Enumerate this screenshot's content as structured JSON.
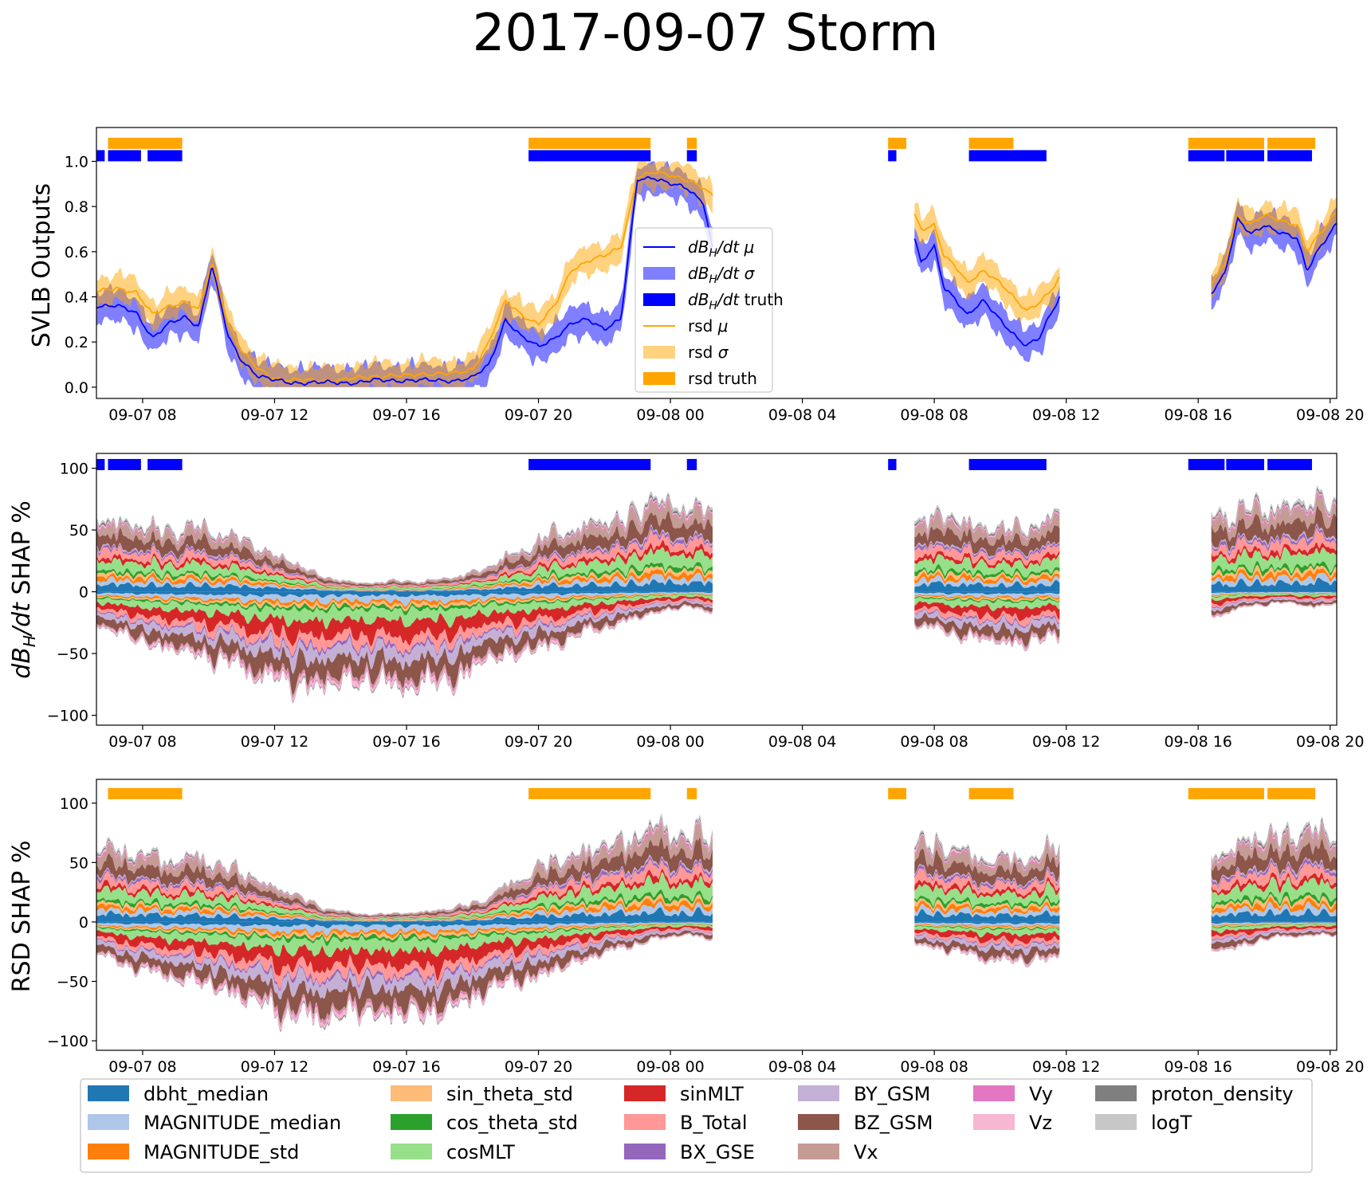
{
  "figure": {
    "title": "2017-09-07 Storm"
  },
  "chart_data": [
    {
      "type": "area",
      "panel": "top",
      "ylabel": "SVLB Outputs",
      "ylim": [
        -0.05,
        1.15
      ],
      "yticks": [
        "0.0",
        "0.2",
        "0.4",
        "0.6",
        "0.8",
        "1.0"
      ],
      "ytick_values": [
        0.0,
        0.2,
        0.4,
        0.6,
        0.8,
        1.0
      ],
      "xlim_hours": [
        6.6,
        44.2
      ],
      "xtick_labels": [
        "09-07 08",
        "09-07 12",
        "09-07 16",
        "09-07 20",
        "09-08 00",
        "09-08 04",
        "09-08 08",
        "09-08 12",
        "09-08 16",
        "09-08 20"
      ],
      "xtick_hours": [
        8,
        12,
        16,
        20,
        24,
        28,
        32,
        36,
        40,
        44
      ],
      "legend": {
        "placement": "center",
        "entries": [
          "dB_H/dt μ",
          "dB_H/dt σ",
          "dB_H/dt truth",
          "rsd μ",
          "rsd σ",
          "rsd truth"
        ]
      },
      "segments_hours": [
        [
          6.6,
          25.3
        ],
        [
          31.4,
          35.8
        ],
        [
          40.4,
          44.2
        ]
      ],
      "series": [
        {
          "name": "dB_H/dt μ",
          "color": "#0000ff",
          "x": [
            6.6,
            7.2,
            7.8,
            8.3,
            8.8,
            9.3,
            9.7,
            10.1,
            10.6,
            11.0,
            11.5,
            12.0,
            12.5,
            13.0,
            13.5,
            14.0,
            14.5,
            15.0,
            15.5,
            16.0,
            16.5,
            17.0,
            17.5,
            18.0,
            18.5,
            19.0,
            19.5,
            20.0,
            20.5,
            21.0,
            21.5,
            22.0,
            22.5,
            23.0,
            23.5,
            24.0,
            24.5,
            25.0,
            25.3,
            31.4,
            31.6,
            32.0,
            32.3,
            32.6,
            33.0,
            33.5,
            34.0,
            34.5,
            34.8,
            35.2,
            35.5,
            35.8,
            40.4,
            40.8,
            41.2,
            41.6,
            42.0,
            42.5,
            43.0,
            43.3,
            43.6,
            44.0,
            44.2
          ],
          "values": [
            0.36,
            0.36,
            0.33,
            0.22,
            0.28,
            0.31,
            0.27,
            0.54,
            0.22,
            0.12,
            0.05,
            0.03,
            0.02,
            0.02,
            0.02,
            0.02,
            0.02,
            0.03,
            0.03,
            0.03,
            0.03,
            0.03,
            0.03,
            0.04,
            0.1,
            0.3,
            0.22,
            0.18,
            0.22,
            0.28,
            0.3,
            0.26,
            0.3,
            0.92,
            0.93,
            0.9,
            0.88,
            0.82,
            0.6,
            0.66,
            0.55,
            0.62,
            0.44,
            0.4,
            0.32,
            0.38,
            0.3,
            0.22,
            0.18,
            0.22,
            0.32,
            0.4,
            0.42,
            0.5,
            0.74,
            0.68,
            0.72,
            0.68,
            0.66,
            0.52,
            0.6,
            0.68,
            0.72
          ]
        },
        {
          "name": "rsd μ",
          "color": "#ffa500",
          "x": [
            6.6,
            7.2,
            7.8,
            8.3,
            8.8,
            9.3,
            9.7,
            10.1,
            10.6,
            11.0,
            11.5,
            12.0,
            12.5,
            13.0,
            13.5,
            14.0,
            14.5,
            15.0,
            15.5,
            16.0,
            16.5,
            17.0,
            17.5,
            18.0,
            18.5,
            19.0,
            19.5,
            20.0,
            20.5,
            21.0,
            21.5,
            22.0,
            22.5,
            23.0,
            23.5,
            24.0,
            24.5,
            25.0,
            25.3,
            31.4,
            31.6,
            32.0,
            32.3,
            32.6,
            33.0,
            33.5,
            34.0,
            34.5,
            34.8,
            35.2,
            35.5,
            35.8,
            40.4,
            40.8,
            41.2,
            41.6,
            42.0,
            42.5,
            43.0,
            43.3,
            43.6,
            44.0,
            44.2
          ],
          "values": [
            0.42,
            0.44,
            0.42,
            0.32,
            0.36,
            0.38,
            0.34,
            0.55,
            0.28,
            0.16,
            0.08,
            0.04,
            0.03,
            0.03,
            0.03,
            0.03,
            0.04,
            0.05,
            0.05,
            0.05,
            0.06,
            0.06,
            0.06,
            0.08,
            0.2,
            0.38,
            0.32,
            0.28,
            0.36,
            0.52,
            0.56,
            0.58,
            0.62,
            0.93,
            0.95,
            0.94,
            0.92,
            0.88,
            0.84,
            0.76,
            0.7,
            0.72,
            0.58,
            0.54,
            0.46,
            0.52,
            0.46,
            0.38,
            0.34,
            0.38,
            0.42,
            0.48,
            0.46,
            0.54,
            0.76,
            0.72,
            0.76,
            0.74,
            0.72,
            0.6,
            0.66,
            0.74,
            0.78
          ]
        }
      ],
      "truth_bars": {
        "dB_H/dt truth": {
          "value": 1.025,
          "color": "#0000ff",
          "intervals_hours": [
            [
              6.6,
              6.85
            ],
            [
              6.95,
              7.95
            ],
            [
              8.15,
              9.2
            ],
            [
              19.7,
              23.4
            ],
            [
              24.5,
              24.8
            ],
            [
              30.6,
              30.85
            ],
            [
              33.05,
              35.4
            ],
            [
              39.7,
              40.8
            ],
            [
              40.85,
              42.0
            ],
            [
              42.1,
              43.45
            ],
            [
              44.2,
              45.0
            ]
          ]
        },
        "rsd truth": {
          "value": 1.08,
          "color": "#ffa500",
          "intervals_hours": [
            [
              6.95,
              9.2
            ],
            [
              19.7,
              23.4
            ],
            [
              24.5,
              24.8
            ],
            [
              30.6,
              31.15
            ],
            [
              33.05,
              34.4
            ],
            [
              39.7,
              42.0
            ],
            [
              42.1,
              43.55
            ],
            [
              44.2,
              45.0
            ]
          ]
        }
      }
    },
    {
      "type": "area",
      "panel": "middle",
      "ylabel": "dB_H/dt SHAP %",
      "ylim": [
        -108,
        112
      ],
      "yticks": [
        "−100",
        "−50",
        "0",
        "50",
        "100"
      ],
      "ytick_values": [
        -100,
        -50,
        0,
        50,
        100
      ],
      "xtick_labels": [
        "09-07 08",
        "09-07 12",
        "09-07 16",
        "09-07 20",
        "09-08 00",
        "09-08 04",
        "09-08 08",
        "09-08 12",
        "09-08 16",
        "09-08 20"
      ],
      "truth_bar": {
        "value": 103,
        "color": "#0000ff",
        "intervals_hours": [
          [
            6.6,
            6.85
          ],
          [
            6.95,
            7.95
          ],
          [
            8.15,
            9.2
          ],
          [
            19.7,
            23.4
          ],
          [
            24.5,
            24.8
          ],
          [
            30.6,
            30.85
          ],
          [
            33.05,
            35.4
          ],
          [
            39.7,
            40.8
          ],
          [
            40.85,
            42.0
          ],
          [
            42.1,
            43.45
          ],
          [
            44.2,
            45.0
          ]
        ]
      },
      "envelope": {
        "x": [
          6.6,
          7.5,
          8.5,
          9.5,
          10.5,
          11.5,
          12.5,
          13.5,
          14.5,
          15.5,
          16.5,
          17.5,
          18.5,
          19.5,
          20.5,
          21.5,
          22.5,
          23.5,
          24.5,
          25.3,
          31.4,
          32.5,
          33.5,
          34.5,
          35.8,
          40.4,
          41.5,
          42.5,
          43.5,
          44.2
        ],
        "pos_total": [
          70,
          65,
          58,
          60,
          55,
          42,
          28,
          14,
          8,
          10,
          10,
          14,
          24,
          40,
          55,
          62,
          68,
          85,
          80,
          72,
          72,
          70,
          60,
          58,
          70,
          72,
          78,
          80,
          86,
          82
        ],
        "neg_total": [
          -30,
          -42,
          -52,
          -58,
          -66,
          -78,
          -88,
          -90,
          -82,
          -88,
          -86,
          -82,
          -62,
          -58,
          -50,
          -38,
          -30,
          -20,
          -14,
          -20,
          -30,
          -40,
          -46,
          -50,
          -42,
          -24,
          -14,
          -10,
          -14,
          -12
        ]
      }
    },
    {
      "type": "area",
      "panel": "bottom",
      "ylabel": "RSD SHAP %",
      "ylim": [
        -108,
        120
      ],
      "yticks": [
        "−100",
        "−50",
        "0",
        "50",
        "100"
      ],
      "ytick_values": [
        -100,
        -50,
        0,
        50,
        100
      ],
      "xtick_labels": [
        "09-07 08",
        "09-07 12",
        "09-07 16",
        "09-07 20",
        "09-08 00",
        "09-08 04",
        "09-08 08",
        "09-08 12",
        "09-08 16",
        "09-08 20"
      ],
      "truth_bar": {
        "value": 108,
        "color": "#ffa500",
        "intervals_hours": [
          [
            6.95,
            9.2
          ],
          [
            19.7,
            23.4
          ],
          [
            24.5,
            24.8
          ],
          [
            30.6,
            31.15
          ],
          [
            33.05,
            34.4
          ],
          [
            39.7,
            42.0
          ],
          [
            42.1,
            43.55
          ],
          [
            44.2,
            45.0
          ]
        ]
      },
      "envelope": {
        "x": [
          6.6,
          7.5,
          8.5,
          9.5,
          10.5,
          11.5,
          12.5,
          13.5,
          14.5,
          15.5,
          16.5,
          17.5,
          18.5,
          19.5,
          20.5,
          21.5,
          22.5,
          23.5,
          24.5,
          25.3,
          31.4,
          32.5,
          33.5,
          34.5,
          35.8,
          40.4,
          41.5,
          42.5,
          43.5,
          44.2
        ],
        "pos_total": [
          75,
          70,
          62,
          62,
          55,
          40,
          28,
          14,
          8,
          8,
          10,
          14,
          24,
          45,
          60,
          70,
          78,
          90,
          85,
          80,
          80,
          72,
          62,
          60,
          72,
          65,
          80,
          85,
          88,
          85
        ],
        "neg_total": [
          -30,
          -42,
          -52,
          -58,
          -68,
          -80,
          -92,
          -94,
          -88,
          -90,
          -90,
          -84,
          -64,
          -58,
          -48,
          -36,
          -26,
          -18,
          -12,
          -18,
          -22,
          -28,
          -36,
          -40,
          -34,
          -30,
          -22,
          -14,
          -14,
          -12
        ]
      }
    }
  ],
  "features": [
    {
      "name": "dbht_median",
      "color": "#1f77b4"
    },
    {
      "name": "MAGNITUDE_median",
      "color": "#aec7e8"
    },
    {
      "name": "MAGNITUDE_std",
      "color": "#ff7f0e"
    },
    {
      "name": "sin_theta_std",
      "color": "#ffbb78"
    },
    {
      "name": "cos_theta_std",
      "color": "#2ca02c"
    },
    {
      "name": "cosMLT",
      "color": "#98df8a"
    },
    {
      "name": "sinMLT",
      "color": "#d62728"
    },
    {
      "name": "B_Total",
      "color": "#ff9896"
    },
    {
      "name": "BX_GSE",
      "color": "#9467bd"
    },
    {
      "name": "BY_GSM",
      "color": "#c5b0d5"
    },
    {
      "name": "BZ_GSM",
      "color": "#8c564b"
    },
    {
      "name": "Vx",
      "color": "#c49c94"
    },
    {
      "name": "Vy",
      "color": "#e377c2"
    },
    {
      "name": "Vz",
      "color": "#f7b6d2"
    },
    {
      "name": "proton_density",
      "color": "#7f7f7f"
    },
    {
      "name": "logT",
      "color": "#c7c7c7"
    }
  ]
}
